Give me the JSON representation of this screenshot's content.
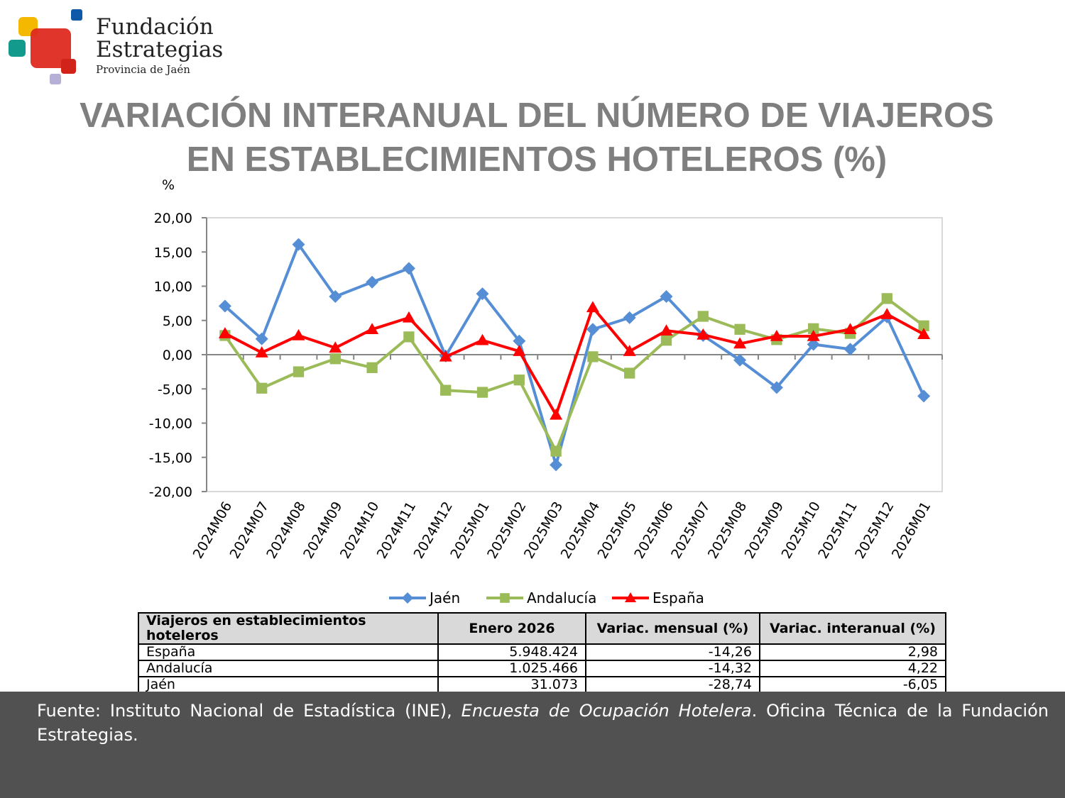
{
  "logo": {
    "line1": "Fundación",
    "line2": "Estrategias",
    "line3": "Provincia de Jaén"
  },
  "title_line1": "VARIACIÓN INTERANUAL DEL NÚMERO DE VIAJEROS",
  "title_line2": "EN ESTABLECIMIENTOS HOTELEROS (%)",
  "chart_data": {
    "type": "line",
    "ylabel": "%",
    "ylim": [
      -20,
      20
    ],
    "yticks": [
      "20,00",
      "15,00",
      "10,00",
      "5,00",
      "0,00",
      "-5,00",
      "-10,00",
      "-15,00",
      "-20,00"
    ],
    "ytick_values": [
      20,
      15,
      10,
      5,
      0,
      -5,
      -10,
      -15,
      -20
    ],
    "categories": [
      "2024M06",
      "2024M07",
      "2024M08",
      "2024M09",
      "2024M10",
      "2024M11",
      "2024M12",
      "2025M01",
      "2025M02",
      "2025M03",
      "2025M04",
      "2025M05",
      "2025M06",
      "2025M07",
      "2025M08",
      "2025M09",
      "2025M10",
      "2025M11",
      "2025M12",
      "2026M01"
    ],
    "legend_position": "bottom",
    "grid": false,
    "series": [
      {
        "name": "Jaén",
        "color": "#558ed5",
        "marker": "diamond",
        "values": [
          7.1,
          2.3,
          16.1,
          8.5,
          10.6,
          12.6,
          -0.2,
          8.9,
          2.0,
          -16.1,
          3.7,
          5.4,
          8.5,
          2.8,
          -0.8,
          -4.8,
          1.5,
          0.8,
          5.5,
          -6.05
        ]
      },
      {
        "name": "Andalucía",
        "color": "#9bbb59",
        "marker": "square",
        "values": [
          2.8,
          -4.9,
          -2.5,
          -0.6,
          -1.9,
          2.6,
          -5.2,
          -5.5,
          -3.7,
          -14.1,
          -0.3,
          -2.7,
          2.1,
          5.6,
          3.7,
          2.2,
          3.8,
          3.1,
          8.2,
          4.22
        ]
      },
      {
        "name": "España",
        "color": "#ff0000",
        "marker": "triangle",
        "values": [
          3.1,
          0.3,
          2.8,
          1.0,
          3.7,
          5.4,
          -0.3,
          2.1,
          0.5,
          -8.8,
          6.9,
          0.5,
          3.5,
          2.9,
          1.6,
          2.7,
          2.7,
          3.7,
          5.9,
          2.98
        ]
      }
    ]
  },
  "table": {
    "headers": [
      "Viajeros en establecimientos hoteleros",
      "Enero 2026",
      "Variac. mensual (%)",
      "Variac. interanual (%)"
    ],
    "rows": [
      [
        "España",
        "5.948.424",
        "-14,26",
        "2,98"
      ],
      [
        "Andalucía",
        "1.025.466",
        "-14,32",
        "4,22"
      ],
      [
        "Jaén",
        "31.073",
        "-28,74",
        "-6,05"
      ]
    ]
  },
  "footer": {
    "prefix": "Fuente: Instituto Nacional de Estadística (INE), ",
    "italic": "Encuesta de Ocupación Hotelera",
    "suffix": ". Oficina Técnica de la Fundación Estrategias."
  }
}
